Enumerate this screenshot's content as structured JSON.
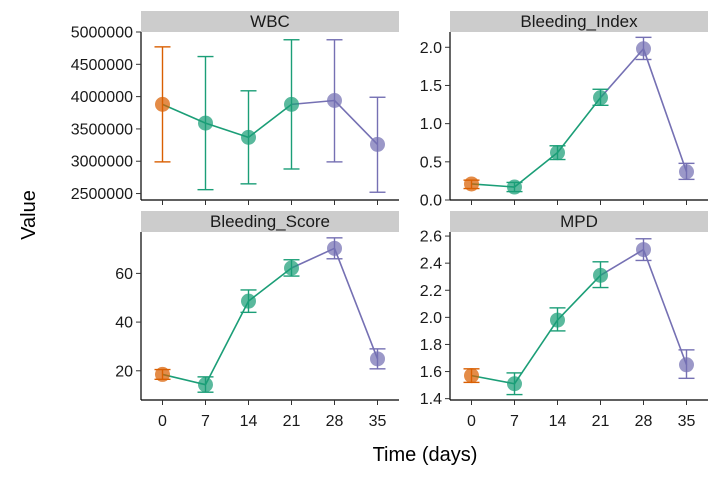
{
  "chart_data": {
    "type": "line",
    "xlabel": "Time (days)",
    "ylabel": "Value",
    "x_ticks": [
      0,
      7,
      14,
      21,
      28,
      35
    ],
    "colors": {
      "phase1": "#D95F02",
      "phase2": "#1B9E77",
      "phase3": "#7570B3"
    },
    "panels": [
      {
        "title": "WBC",
        "ylim": [
          2400000,
          5000000
        ],
        "yticks": [
          2500000,
          3000000,
          3500000,
          4000000,
          4500000,
          5000000
        ],
        "ytick_labels": [
          "2500000",
          "3000000",
          "3500000",
          "4000000",
          "4500000",
          "5000000"
        ],
        "points": [
          {
            "x": 0,
            "y": 3880000,
            "lo": 2990000,
            "hi": 4770000,
            "phase": "phase1"
          },
          {
            "x": 7,
            "y": 3590000,
            "lo": 2560000,
            "hi": 4620000,
            "phase": "phase2"
          },
          {
            "x": 14,
            "y": 3370000,
            "lo": 2650000,
            "hi": 4090000,
            "phase": "phase2"
          },
          {
            "x": 21,
            "y": 3880000,
            "lo": 2880000,
            "hi": 4880000,
            "phase": "phase2"
          },
          {
            "x": 28,
            "y": 3940000,
            "lo": 2990000,
            "hi": 4880000,
            "phase": "phase3"
          },
          {
            "x": 35,
            "y": 3260000,
            "lo": 2520000,
            "hi": 3990000,
            "phase": "phase3"
          }
        ]
      },
      {
        "title": "Bleeding_Index",
        "ylim": [
          0,
          2.2
        ],
        "yticks": [
          0,
          0.5,
          1,
          1.5,
          2
        ],
        "ytick_labels": [
          "0.0",
          "0.5",
          "1.0",
          "1.5",
          "2.0"
        ],
        "points": [
          {
            "x": 0,
            "y": 0.21,
            "lo": 0.15,
            "hi": 0.26,
            "phase": "phase1"
          },
          {
            "x": 7,
            "y": 0.17,
            "lo": 0.11,
            "hi": 0.23,
            "phase": "phase2"
          },
          {
            "x": 14,
            "y": 0.62,
            "lo": 0.53,
            "hi": 0.71,
            "phase": "phase2"
          },
          {
            "x": 21,
            "y": 1.34,
            "lo": 1.24,
            "hi": 1.45,
            "phase": "phase2"
          },
          {
            "x": 28,
            "y": 1.98,
            "lo": 1.84,
            "hi": 2.13,
            "phase": "phase3"
          },
          {
            "x": 35,
            "y": 0.37,
            "lo": 0.27,
            "hi": 0.48,
            "phase": "phase3"
          }
        ]
      },
      {
        "title": "Bleeding_Score",
        "ylim": [
          8,
          77
        ],
        "yticks": [
          20,
          40,
          60
        ],
        "ytick_labels": [
          "20",
          "40",
          "60"
        ],
        "points": [
          {
            "x": 0,
            "y": 18.5,
            "lo": 16.5,
            "hi": 20.5,
            "phase": "phase1"
          },
          {
            "x": 7,
            "y": 14.3,
            "lo": 11.2,
            "hi": 17.5,
            "phase": "phase2"
          },
          {
            "x": 14,
            "y": 48.6,
            "lo": 44.0,
            "hi": 53.2,
            "phase": "phase2"
          },
          {
            "x": 21,
            "y": 62.2,
            "lo": 58.9,
            "hi": 65.6,
            "phase": "phase2"
          },
          {
            "x": 28,
            "y": 70.3,
            "lo": 66.0,
            "hi": 74.6,
            "phase": "phase3"
          },
          {
            "x": 35,
            "y": 24.9,
            "lo": 20.8,
            "hi": 29.0,
            "phase": "phase3"
          }
        ]
      },
      {
        "title": "MPD",
        "ylim": [
          1.39,
          2.63
        ],
        "yticks": [
          1.4,
          1.6,
          1.8,
          2.0,
          2.2,
          2.4,
          2.6
        ],
        "ytick_labels": [
          "1.4",
          "1.6",
          "1.8",
          "2.0",
          "2.2",
          "2.4",
          "2.6"
        ],
        "points": [
          {
            "x": 0,
            "y": 1.57,
            "lo": 1.52,
            "hi": 1.62,
            "phase": "phase1"
          },
          {
            "x": 7,
            "y": 1.51,
            "lo": 1.43,
            "hi": 1.59,
            "phase": "phase2"
          },
          {
            "x": 14,
            "y": 1.98,
            "lo": 1.9,
            "hi": 2.07,
            "phase": "phase2"
          },
          {
            "x": 21,
            "y": 2.31,
            "lo": 2.22,
            "hi": 2.41,
            "phase": "phase2"
          },
          {
            "x": 28,
            "y": 2.5,
            "lo": 2.42,
            "hi": 2.58,
            "phase": "phase3"
          },
          {
            "x": 35,
            "y": 1.65,
            "lo": 1.55,
            "hi": 1.76,
            "phase": "phase3"
          }
        ]
      }
    ],
    "grid": false,
    "legend": "none"
  }
}
